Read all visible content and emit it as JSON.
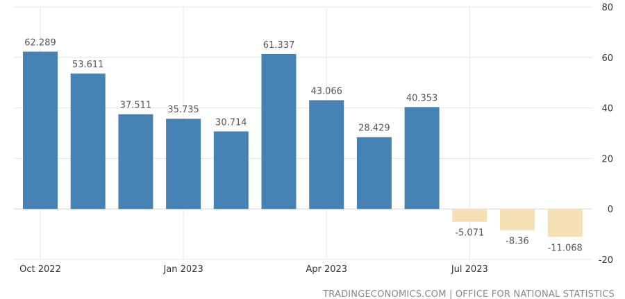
{
  "chart_data": {
    "type": "bar",
    "categories": [
      "Oct 2022",
      "Nov 2022",
      "Dec 2022",
      "Jan 2023",
      "Feb 2023",
      "Mar 2023",
      "Apr 2023",
      "May 2023",
      "Jun 2023",
      "Jul 2023",
      "Aug 2023",
      "Sep 2023"
    ],
    "values": [
      62.289,
      53.611,
      37.511,
      35.735,
      30.714,
      61.337,
      43.066,
      28.429,
      40.353,
      -5.071,
      -8.36,
      -11.068
    ],
    "value_labels": [
      "62.289",
      "53.611",
      "37.511",
      "35.735",
      "30.714",
      "61.337",
      "43.066",
      "28.429",
      "40.353",
      "-5.071",
      "-8.36",
      "-11.068"
    ],
    "x_tick_labels": [
      {
        "label": "Oct 2022",
        "category_index": 0
      },
      {
        "label": "Jan 2023",
        "category_index": 3
      },
      {
        "label": "Apr 2023",
        "category_index": 6
      },
      {
        "label": "Jul 2023",
        "category_index": 9
      }
    ],
    "y_ticks": [
      80,
      60,
      40,
      20,
      0,
      -20
    ],
    "ylim": [
      -20,
      80
    ],
    "title": "",
    "xlabel": "",
    "ylabel": "",
    "grid": true,
    "y_axis_position": "right",
    "colors": {
      "positive": "#4682b4",
      "negative": "#f5dfb5"
    }
  },
  "source": "TRADINGECONOMICS.COM | OFFICE FOR NATIONAL STATISTICS"
}
